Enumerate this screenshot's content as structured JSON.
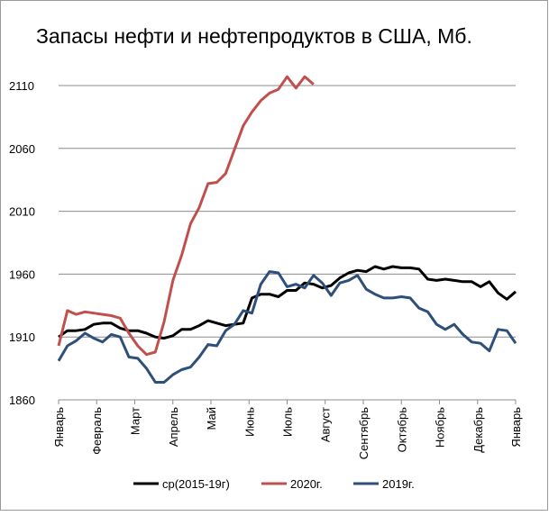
{
  "chart_data": {
    "type": "line",
    "title": "Запасы нефти и нефтепродуктов в США, Мб.",
    "x": [
      0,
      1,
      2,
      3,
      4,
      5,
      6,
      7,
      8,
      9,
      10,
      11,
      12,
      13,
      14,
      15,
      16,
      17,
      18,
      19,
      20,
      21,
      22,
      23,
      24,
      25,
      26,
      27,
      28,
      29,
      30,
      31,
      32,
      33,
      34,
      35,
      36,
      37,
      38,
      39,
      40,
      41,
      42,
      43,
      44,
      45,
      46,
      47,
      48,
      49,
      50,
      51,
      52
    ],
    "xlim": [
      0,
      52
    ],
    "xticks": [
      {
        "value": 0,
        "label": "Январь"
      },
      {
        "value": 4.33,
        "label": "Февраль"
      },
      {
        "value": 8.67,
        "label": "Март"
      },
      {
        "value": 13,
        "label": "Апрель"
      },
      {
        "value": 17.33,
        "label": "Май"
      },
      {
        "value": 21.67,
        "label": "Июнь"
      },
      {
        "value": 26,
        "label": "Июль"
      },
      {
        "value": 30.33,
        "label": "Август"
      },
      {
        "value": 34.67,
        "label": "Сентябрь"
      },
      {
        "value": 39,
        "label": "Октябрь"
      },
      {
        "value": 43.33,
        "label": "Ноябрь"
      },
      {
        "value": 47.67,
        "label": "Декабрь"
      },
      {
        "value": 52,
        "label": "Январь"
      }
    ],
    "ylim": [
      1860,
      2110
    ],
    "yticks": [
      1860,
      1910,
      1960,
      2010,
      2060,
      2110
    ],
    "grid": true,
    "legend": "bottom",
    "series": [
      {
        "name": "ср(2015-19г)",
        "color": "#000000",
        "values": [
          1910,
          1915,
          1915,
          1916,
          1920,
          1921,
          1921,
          1917,
          1915,
          1915,
          1913,
          1910,
          1909,
          1911,
          1916,
          1916,
          1919,
          1923,
          1921,
          1919,
          1920,
          1921,
          1941,
          1944,
          1944,
          1942,
          1947,
          1947,
          1953,
          1952,
          1949,
          1951,
          1957,
          1961,
          1963,
          1962,
          1966,
          1964,
          1966,
          1965,
          1965,
          1964,
          1956,
          1955,
          1956,
          1955,
          1954,
          1954,
          1950,
          1954,
          1945,
          1940,
          1946
        ]
      },
      {
        "name": "2020г.",
        "color": "#c0504d",
        "values": [
          1903,
          1931,
          1928,
          1930,
          1929,
          1928,
          1927,
          1925,
          1913,
          1903,
          1896,
          1898,
          1922,
          1955,
          1975,
          2000,
          2013,
          2032,
          2033,
          2040,
          2059,
          2078,
          2089,
          2098,
          2104,
          2107,
          2117,
          2108,
          2117,
          2111,
          null,
          null,
          null,
          null,
          null,
          null,
          null,
          null,
          null,
          null,
          null,
          null,
          null,
          null,
          null,
          null,
          null,
          null,
          null,
          null,
          null,
          null,
          null
        ]
      },
      {
        "name": "2019г.",
        "color": "#2e4f7a",
        "values": [
          1891,
          1903,
          1907,
          1913,
          1909,
          1906,
          1912,
          1910,
          1894,
          1893,
          1885,
          1874,
          1874,
          1880,
          1884,
          1886,
          1894,
          1904,
          1903,
          1915,
          1920,
          1931,
          1929,
          1952,
          1962,
          1961,
          1950,
          1952,
          1949,
          1959,
          1953,
          1943,
          1953,
          1955,
          1959,
          1948,
          1944,
          1941,
          1941,
          1942,
          1941,
          1933,
          1930,
          1920,
          1916,
          1920,
          1912,
          1906,
          1905,
          1899,
          1916,
          1915,
          1905
        ]
      }
    ]
  }
}
